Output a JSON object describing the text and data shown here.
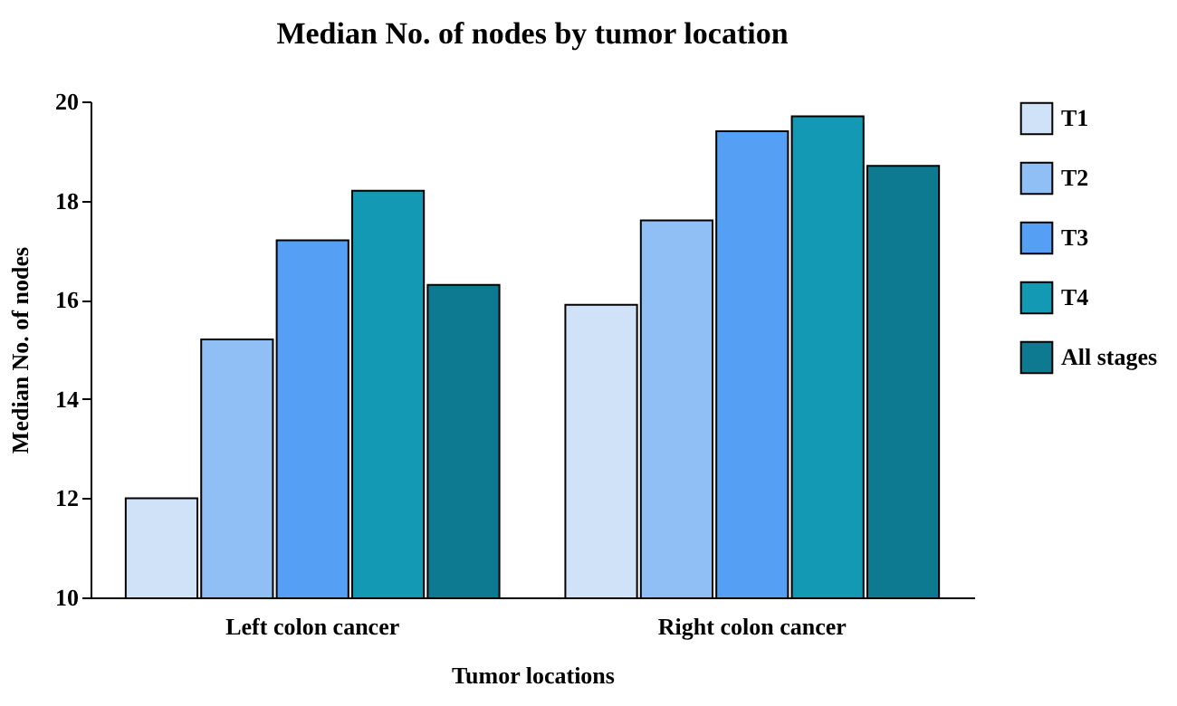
{
  "chart_data": {
    "type": "bar",
    "title": "Median No. of nodes by tumor location",
    "xlabel": "Tumor locations",
    "ylabel": "Median No. of nodes",
    "categories": [
      "Left colon cancer",
      "Right colon cancer"
    ],
    "series": [
      {
        "name": "T1",
        "color": "#cfe2f7",
        "values": [
          12.0,
          15.9
        ]
      },
      {
        "name": "T2",
        "color": "#8fbff5",
        "values": [
          15.2,
          17.6
        ]
      },
      {
        "name": "T3",
        "color": "#55a0f5",
        "values": [
          17.2,
          19.4
        ]
      },
      {
        "name": "T4",
        "color": "#1399b3",
        "values": [
          18.2,
          19.7
        ]
      },
      {
        "name": "All stages",
        "color": "#0e7a91",
        "values": [
          16.3,
          18.7
        ]
      }
    ],
    "ylim": [
      10,
      20
    ],
    "yticks": [
      10,
      12,
      14,
      16,
      18,
      20
    ],
    "grid": false,
    "legend": "top right"
  }
}
